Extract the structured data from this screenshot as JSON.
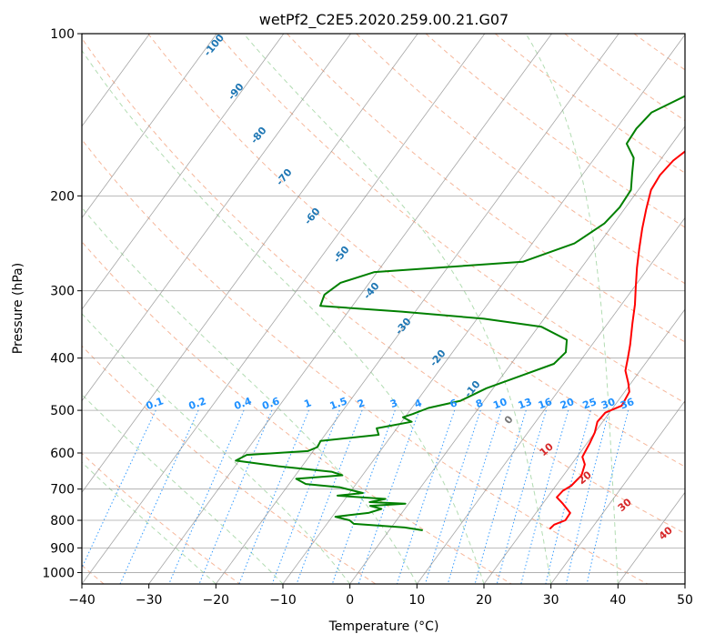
{
  "chart_data": {
    "type": "line",
    "title": "wetPf2_C2E5.2020.259.00.21.G07",
    "xlabel": "Temperature (°C)",
    "ylabel": "Pressure (hPa)",
    "xlim": [
      -40,
      50
    ],
    "ylim": [
      1050,
      100
    ],
    "y_scale": "log",
    "x_ticks": [
      -40,
      -30,
      -20,
      -10,
      0,
      10,
      20,
      30,
      40,
      50
    ],
    "y_ticks": [
      100,
      200,
      300,
      400,
      500,
      600,
      700,
      800,
      900,
      1000
    ],
    "grid": true,
    "series": [
      {
        "name": "",
        "color": "#ff0000",
        "points": [
          [
            10.5,
            100
          ],
          [
            9.2,
            110
          ],
          [
            7.7,
            122
          ],
          [
            6.6,
            133
          ],
          [
            6.4,
            145
          ],
          [
            5.5,
            152
          ],
          [
            3.4,
            160
          ],
          [
            2.0,
            172
          ],
          [
            1.6,
            183
          ],
          [
            1.9,
            195
          ],
          [
            3.3,
            212
          ],
          [
            4.8,
            230
          ],
          [
            6.5,
            250
          ],
          [
            8.3,
            272
          ],
          [
            10.2,
            295
          ],
          [
            12.0,
            318
          ],
          [
            13.7,
            345
          ],
          [
            15.7,
            378
          ],
          [
            16.8,
            400
          ],
          [
            17.8,
            422
          ],
          [
            19.6,
            445
          ],
          [
            20.7,
            462
          ],
          [
            21.1,
            490
          ],
          [
            19.4,
            505
          ],
          [
            19.2,
            525
          ],
          [
            20.0,
            550
          ],
          [
            20.4,
            575
          ],
          [
            20.8,
            610
          ],
          [
            22.0,
            630
          ],
          [
            22.7,
            660
          ],
          [
            22.3,
            690
          ],
          [
            21.6,
            705
          ],
          [
            21.4,
            725
          ],
          [
            23.0,
            745
          ],
          [
            25.1,
            775
          ],
          [
            25.2,
            800
          ],
          [
            24.0,
            815
          ],
          [
            23.8,
            830
          ]
        ]
      },
      {
        "name": "",
        "color": "#008000",
        "points": [
          [
            2.8,
            100
          ],
          [
            1.7,
            110
          ],
          [
            0.2,
            120
          ],
          [
            -3.1,
            130
          ],
          [
            -6.5,
            140
          ],
          [
            -7.0,
            150
          ],
          [
            -6.8,
            160
          ],
          [
            -4.2,
            170
          ],
          [
            -2.7,
            182
          ],
          [
            -1.1,
            195
          ],
          [
            -0.9,
            210
          ],
          [
            -1.4,
            225
          ],
          [
            -3.7,
            245
          ],
          [
            -9.4,
            265
          ],
          [
            -30.4,
            277
          ],
          [
            -34.3,
            290
          ],
          [
            -35.4,
            305
          ],
          [
            -34.8,
            320
          ],
          [
            -22.0,
            328
          ],
          [
            -9.0,
            338
          ],
          [
            0.5,
            350
          ],
          [
            5.7,
            370
          ],
          [
            6.9,
            390
          ],
          [
            6.4,
            410
          ],
          [
            3.0,
            430
          ],
          [
            -1.0,
            455
          ],
          [
            -3.5,
            480
          ],
          [
            -7.5,
            495
          ],
          [
            -9.2,
            508
          ],
          [
            -10.3,
            515
          ],
          [
            -8.5,
            525
          ],
          [
            -13.0,
            540
          ],
          [
            -12.0,
            555
          ],
          [
            -20.0,
            570
          ],
          [
            -19.8,
            585
          ],
          [
            -20.8,
            595
          ],
          [
            -29.5,
            605
          ],
          [
            -30.5,
            620
          ],
          [
            -23.5,
            635
          ],
          [
            -15.0,
            650
          ],
          [
            -13.0,
            660
          ],
          [
            -19.5,
            670
          ],
          [
            -17.5,
            685
          ],
          [
            -12.0,
            695
          ],
          [
            -8.0,
            712
          ],
          [
            -11.5,
            720
          ],
          [
            -4.0,
            730
          ],
          [
            -6.0,
            740
          ],
          [
            -0.5,
            745
          ],
          [
            -5.5,
            752
          ],
          [
            -3.5,
            762
          ],
          [
            -5.0,
            775
          ],
          [
            -9.5,
            788
          ],
          [
            -7.0,
            800
          ],
          [
            -6.0,
            812
          ],
          [
            -1.0,
            820
          ],
          [
            2.0,
            825
          ],
          [
            5.0,
            835
          ]
        ]
      }
    ],
    "dry_adiabat_labels": [
      "-100",
      "-90",
      "-80",
      "-70",
      "-60",
      "-50",
      "-40",
      "-30",
      "-20",
      "-10",
      "0"
    ],
    "moist_adiabat_labels": [
      "10",
      "20",
      "30",
      "40"
    ],
    "mixing_ratio_labels": [
      "0.1",
      "0.2",
      "0.4",
      "0.6",
      "1",
      "1.5",
      "2",
      "3",
      "4",
      "6",
      "8",
      "10",
      "13",
      "16",
      "20",
      "25",
      "30",
      "36"
    ],
    "colors": {
      "temperature": "#ff0000",
      "dewpoint": "#008000",
      "dry_adiabat": "#f4a582",
      "moist_adiabat": "#9fd39f",
      "mixing_ratio": "#1e90ff",
      "isotherm": "#888888",
      "dry_label": "#1f77b4",
      "moist_label": "#d62728"
    }
  }
}
